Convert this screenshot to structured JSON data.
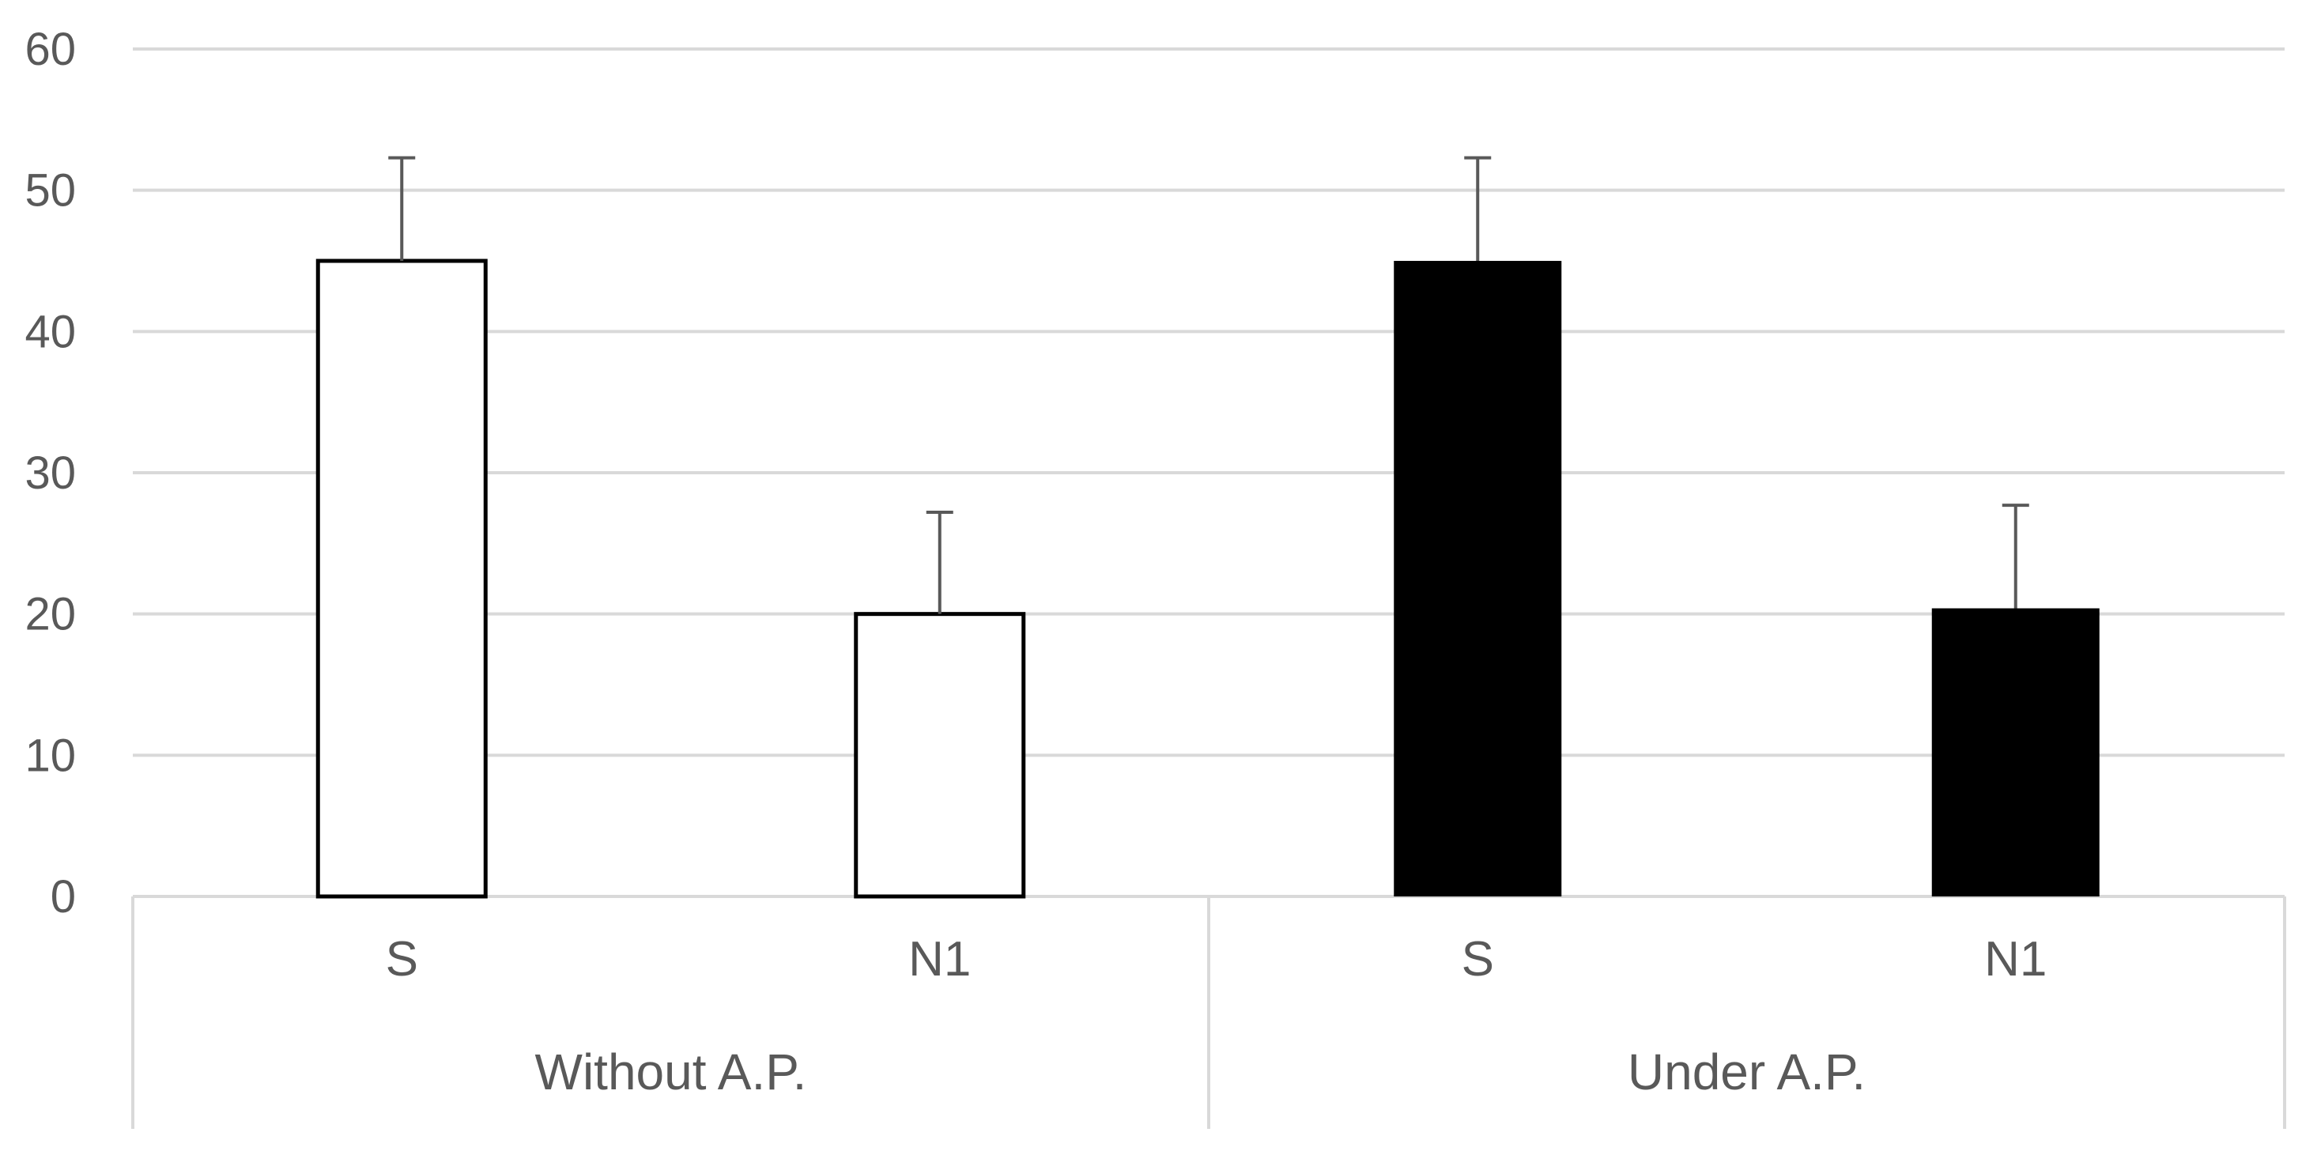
{
  "chart_data": {
    "type": "bar",
    "title": "",
    "xlabel": "",
    "ylabel": "",
    "ylim": [
      0,
      60
    ],
    "yticks": [
      0,
      10,
      20,
      30,
      40,
      50,
      60
    ],
    "grid": true,
    "legend": "none",
    "groups": [
      {
        "label": "Without A.P.",
        "fill": "#ffffff",
        "bars": [
          {
            "category": "S",
            "value": 45,
            "error": 7.3
          },
          {
            "category": "N1",
            "value": 20,
            "error": 7.2
          }
        ]
      },
      {
        "label": "Under A.P.",
        "fill": "#000000",
        "bars": [
          {
            "category": "S",
            "value": 45,
            "error": 7.3
          },
          {
            "category": "N1",
            "value": 20.4,
            "error": 7.3
          }
        ]
      }
    ],
    "colors": {
      "gridline": "#d9d9d9",
      "axis_text": "#595959",
      "bar_outline": "#000000",
      "error_bar": "#595959"
    }
  }
}
